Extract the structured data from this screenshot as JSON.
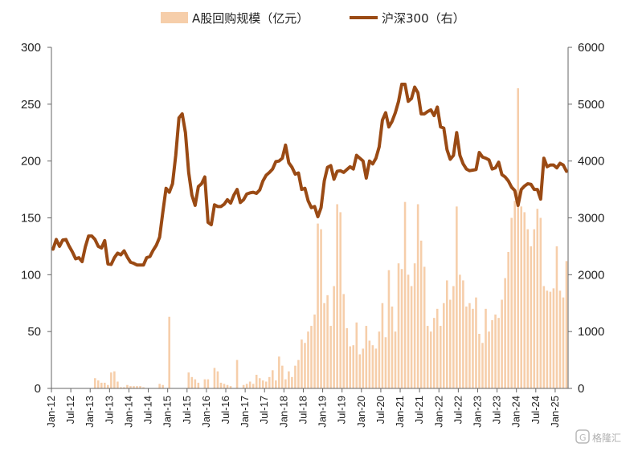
{
  "chart_data": {
    "type": "bar+line",
    "title": "",
    "legend": {
      "placement": "top",
      "items": [
        {
          "label": "A股回购规模（亿元）",
          "kind": "bar",
          "color": "#f6ceaa"
        },
        {
          "label": "沪深300（右）",
          "kind": "line",
          "color": "#9a4a14"
        }
      ]
    },
    "x_start": "2012-01",
    "x_tick_labels": [
      "Jan-12",
      "Jul-12",
      "Jan-13",
      "Jul-13",
      "Jan-14",
      "Jul-14",
      "Jan-15",
      "Jul-15",
      "Jan-16",
      "Jul-16",
      "Jan-17",
      "Jul-17",
      "Jan-18",
      "Jul-18",
      "Jan-19",
      "Jul-19",
      "Jan-20",
      "Jul-20",
      "Jan-21",
      "Jul-21",
      "Jan-22",
      "Jul-22",
      "Jan-23",
      "Jul-23",
      "Jan-24",
      "Jul-24",
      "Jan-25"
    ],
    "y_left": {
      "min": 0,
      "max": 300,
      "ticks": [
        0,
        50,
        100,
        150,
        200,
        250,
        300
      ]
    },
    "y_right": {
      "min": 0,
      "max": 6000,
      "ticks": [
        0,
        1000,
        2000,
        3000,
        4000,
        5000,
        6000
      ]
    },
    "grid": false,
    "series": [
      {
        "name": "A股回购规模（亿元）",
        "type": "bar",
        "axis": "left",
        "color": "#f6ceaa",
        "values": [
          0,
          0,
          0,
          0,
          0,
          0,
          0,
          0,
          0,
          0,
          0,
          0,
          0,
          9,
          7,
          5,
          5,
          3,
          14,
          15,
          6,
          1,
          1,
          3,
          2,
          2,
          2,
          2,
          1,
          0,
          0,
          0,
          0,
          4,
          3,
          0,
          63,
          0,
          0,
          0,
          0,
          0,
          14,
          10,
          8,
          5,
          0,
          8,
          8,
          0,
          18,
          15,
          5,
          4,
          3,
          2,
          0,
          25,
          0,
          3,
          4,
          6,
          4,
          12,
          9,
          7,
          6,
          10,
          16,
          7,
          28,
          20,
          8,
          15,
          10,
          20,
          25,
          43,
          40,
          50,
          55,
          65,
          145,
          140,
          75,
          82,
          55,
          90,
          162,
          155,
          83,
          53,
          37,
          38,
          58,
          30,
          35,
          55,
          42,
          38,
          35,
          50,
          75,
          45,
          104,
          72,
          50,
          110,
          105,
          164,
          100,
          90,
          110,
          162,
          130,
          107,
          55,
          50,
          62,
          70,
          55,
          75,
          95,
          78,
          90,
          160,
          100,
          95,
          72,
          75,
          70,
          80,
          48,
          40,
          70,
          50,
          60,
          65,
          62,
          78,
          97,
          120,
          150,
          165,
          264,
          160,
          155,
          140,
          125,
          140,
          158,
          150,
          90,
          86,
          85,
          88,
          125,
          86,
          80,
          112
        ]
      },
      {
        "name": "沪深300（右）",
        "type": "line",
        "axis": "right",
        "color": "#9a4a14",
        "values": [
          2450,
          2620,
          2500,
          2610,
          2620,
          2500,
          2400,
          2280,
          2300,
          2230,
          2490,
          2680,
          2680,
          2620,
          2500,
          2470,
          2600,
          2190,
          2180,
          2300,
          2380,
          2350,
          2420,
          2310,
          2220,
          2200,
          2170,
          2170,
          2170,
          2300,
          2320,
          2430,
          2520,
          2660,
          3100,
          3520,
          3450,
          3600,
          4100,
          4760,
          4830,
          4500,
          3800,
          3400,
          3220,
          3550,
          3600,
          3720,
          2920,
          2880,
          3230,
          3200,
          3200,
          3240,
          3320,
          3260,
          3400,
          3500,
          3270,
          3320,
          3420,
          3440,
          3450,
          3430,
          3490,
          3650,
          3750,
          3800,
          3860,
          3990,
          4000,
          4050,
          4280,
          3970,
          3890,
          3770,
          3790,
          3500,
          3520,
          3300,
          3180,
          3200,
          3020,
          3180,
          3650,
          3890,
          3920,
          3680,
          3820,
          3830,
          3800,
          3850,
          3900,
          3860,
          4100,
          4050,
          4000,
          3700,
          4000,
          3950,
          4050,
          4250,
          4720,
          4850,
          4600,
          4700,
          4850,
          5050,
          5350,
          5350,
          5050,
          5100,
          5300,
          5200,
          4830,
          4830,
          4870,
          4900,
          4800,
          4950,
          4600,
          4580,
          4200,
          4030,
          4100,
          4500,
          4100,
          3950,
          3860,
          3830,
          3840,
          3850,
          4150,
          4070,
          4050,
          4020,
          3860,
          3880,
          3980,
          3760,
          3720,
          3650,
          3540,
          3480,
          3220,
          3500,
          3560,
          3600,
          3590,
          3500,
          3500,
          3330,
          4050,
          3900,
          3930,
          3930,
          3880,
          3960,
          3930,
          3820
        ]
      }
    ]
  },
  "watermark": "格隆汇"
}
